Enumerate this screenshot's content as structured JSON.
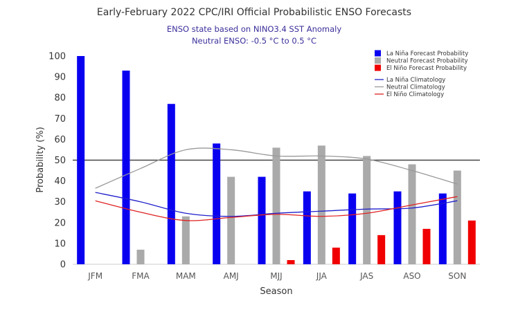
{
  "chart_data": {
    "type": "bar",
    "title": "Early-February 2022 CPC/IRI Official Probabilistic ENSO Forecasts",
    "subtitle_lines": [
      "ENSO state based on NINO3.4 SST Anomaly",
      "Neutral ENSO: -0.5 °C to 0.5 °C"
    ],
    "xlabel": "Season",
    "ylabel": "Probability (%)",
    "ylim": [
      0,
      100
    ],
    "yticks": [
      0,
      10,
      20,
      30,
      40,
      50,
      60,
      70,
      80,
      90,
      100
    ],
    "grid": false,
    "reference_line": 50,
    "legend_position": "top-right",
    "categories": [
      "JFM",
      "FMA",
      "MAM",
      "AMJ",
      "MJJ",
      "JJA",
      "JAS",
      "ASO",
      "SON"
    ],
    "series": [
      {
        "name": "La Niña Forecast Probability",
        "kind": "bar",
        "color": "#0a00f0",
        "values": [
          100,
          93,
          77,
          58,
          42,
          35,
          34,
          35,
          34
        ]
      },
      {
        "name": "Neutral Forecast Probability",
        "kind": "bar",
        "color": "#aaaaaa",
        "values": [
          0,
          7,
          23,
          42,
          56,
          57,
          52,
          48,
          45
        ]
      },
      {
        "name": "El Niño Forecast Probability",
        "kind": "bar",
        "color": "#f00000",
        "values": [
          0,
          0,
          0,
          0,
          2,
          8,
          14,
          17,
          21
        ]
      },
      {
        "name": "La Niña Climatology",
        "kind": "line",
        "color": "#1f1fcc",
        "values": [
          34.5,
          30,
          24.5,
          23,
          24.5,
          25.5,
          26.5,
          27,
          30.5
        ]
      },
      {
        "name": "Neutral Climatology",
        "kind": "line",
        "color": "#999999",
        "values": [
          36.5,
          46,
          55,
          55,
          52,
          52,
          50.5,
          45,
          38.5
        ]
      },
      {
        "name": "El Niño Climatology",
        "kind": "line",
        "color": "#e02020",
        "values": [
          30.5,
          25,
          21,
          22.5,
          24,
          23,
          24.5,
          28.5,
          32.5
        ]
      }
    ]
  }
}
